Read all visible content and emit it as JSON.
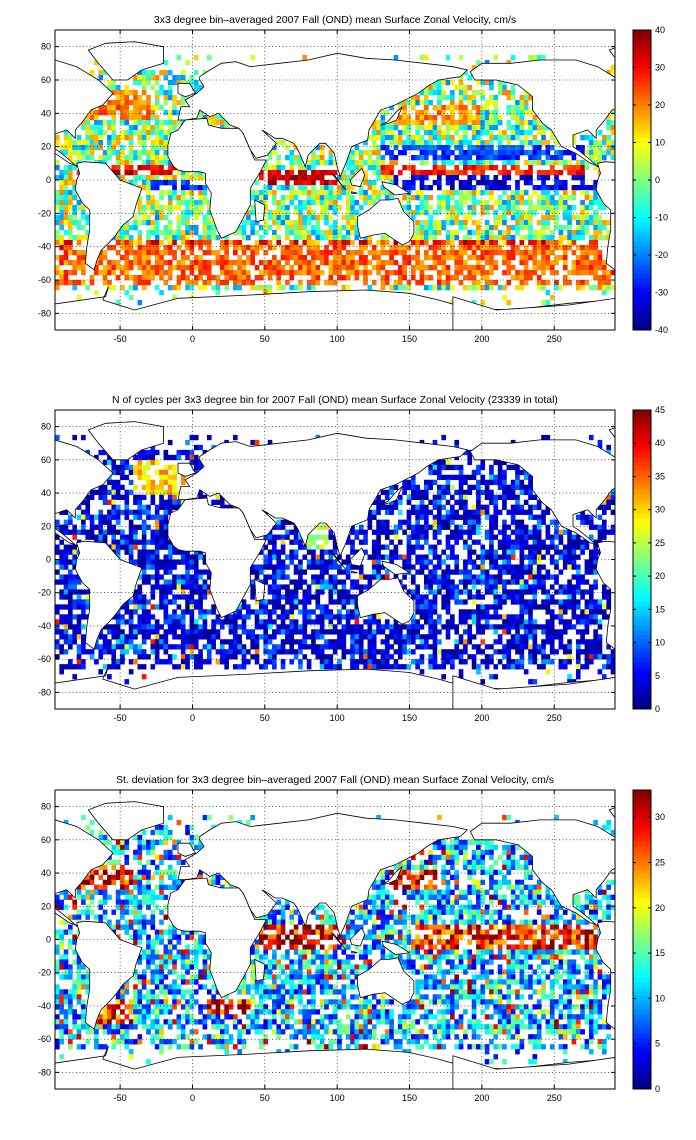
{
  "chart_data": [
    {
      "type": "heatmap",
      "title": "3x3 degree bin–averaged 2007 Fall (OND) mean Surface Zonal Velocity, cm/s",
      "xlabel": "",
      "ylabel": "",
      "xlim": [
        -95,
        292
      ],
      "ylim": [
        -90,
        90
      ],
      "xticks": [
        -50,
        0,
        50,
        100,
        150,
        200,
        250
      ],
      "yticks": [
        80,
        60,
        40,
        20,
        0,
        -20,
        -40,
        -60,
        -80
      ],
      "colorbar": {
        "range": [
          -40,
          40
        ],
        "ticks": [
          40,
          30,
          20,
          10,
          0,
          -10,
          -20,
          -30,
          -40
        ]
      },
      "colormap": "jet",
      "bin_size_deg": 3,
      "grid": "dotted",
      "features": [
        {
          "lon": [
            -80,
            -10
          ],
          "lat": [
            2,
            8
          ],
          "value": 32
        },
        {
          "lon": [
            -30,
            10
          ],
          "lat": [
            -6,
            0
          ],
          "value": -25
        },
        {
          "lon": [
            45,
            100
          ],
          "lat": [
            -3,
            6
          ],
          "value": 35
        },
        {
          "lon": [
            130,
            270
          ],
          "lat": [
            3,
            10
          ],
          "value": 28
        },
        {
          "lon": [
            140,
            280
          ],
          "lat": [
            -6,
            2
          ],
          "value": -32
        },
        {
          "lon": [
            130,
            270
          ],
          "lat": [
            12,
            22
          ],
          "value": -25
        },
        {
          "lon": [
            -90,
            290
          ],
          "lat": [
            -62,
            -40
          ],
          "value": 22
        },
        {
          "lon": [
            140,
            200
          ],
          "lat": [
            33,
            45
          ],
          "value": 18
        },
        {
          "lon": [
            -80,
            -30
          ],
          "lat": [
            35,
            55
          ],
          "value": 20
        }
      ]
    },
    {
      "type": "heatmap",
      "title": "N of cycles per 3x3 degree bin for 2007 Fall (OND) mean Surface Zonal Velocity (23339 in total)",
      "xlabel": "",
      "ylabel": "",
      "xlim": [
        -95,
        292
      ],
      "ylim": [
        -90,
        90
      ],
      "xticks": [
        -50,
        0,
        50,
        100,
        150,
        200,
        250
      ],
      "yticks": [
        80,
        60,
        40,
        20,
        0,
        -20,
        -40,
        -60,
        -80
      ],
      "colorbar": {
        "range": [
          0,
          45
        ],
        "ticks": [
          45,
          40,
          35,
          30,
          25,
          20,
          15,
          10,
          5,
          0
        ]
      },
      "colormap": "jet",
      "bin_size_deg": 3,
      "grid": "dotted",
      "total_count": 23339,
      "typical_range": [
        1,
        10
      ],
      "features": [
        {
          "lon": [
            -40,
            -5
          ],
          "lat": [
            40,
            60
          ],
          "value": 30
        },
        {
          "lon": [
            80,
            95
          ],
          "lat": [
            5,
            20
          ],
          "value": 25
        }
      ]
    },
    {
      "type": "heatmap",
      "title": "St. deviation for 3x3 degree bin–averaged 2007 Fall (OND) mean Surface Zonal Velocity, cm/s",
      "xlabel": "",
      "ylabel": "",
      "xlim": [
        -95,
        292
      ],
      "ylim": [
        -90,
        90
      ],
      "xticks": [
        -50,
        0,
        50,
        100,
        150,
        200,
        250
      ],
      "yticks": [
        80,
        60,
        40,
        20,
        0,
        -20,
        -40,
        -60,
        -80
      ],
      "colorbar": {
        "range": [
          0,
          33
        ],
        "ticks": [
          30,
          25,
          20,
          15,
          10,
          5,
          0
        ]
      },
      "colormap": "jet",
      "bin_size_deg": 3,
      "grid": "dotted",
      "typical_range": [
        5,
        15
      ],
      "features": [
        {
          "lon": [
            -80,
            -40
          ],
          "lat": [
            30,
            45
          ],
          "value": 30
        },
        {
          "lon": [
            45,
            100
          ],
          "lat": [
            -5,
            10
          ],
          "value": 30
        },
        {
          "lon": [
            135,
            170
          ],
          "lat": [
            30,
            42
          ],
          "value": 30
        },
        {
          "lon": [
            150,
            280
          ],
          "lat": [
            -5,
            10
          ],
          "value": 28
        },
        {
          "lon": [
            10,
            40
          ],
          "lat": [
            -45,
            -35
          ],
          "value": 30
        },
        {
          "lon": [
            -70,
            -40
          ],
          "lat": [
            -50,
            -35
          ],
          "value": 28
        }
      ]
    }
  ]
}
